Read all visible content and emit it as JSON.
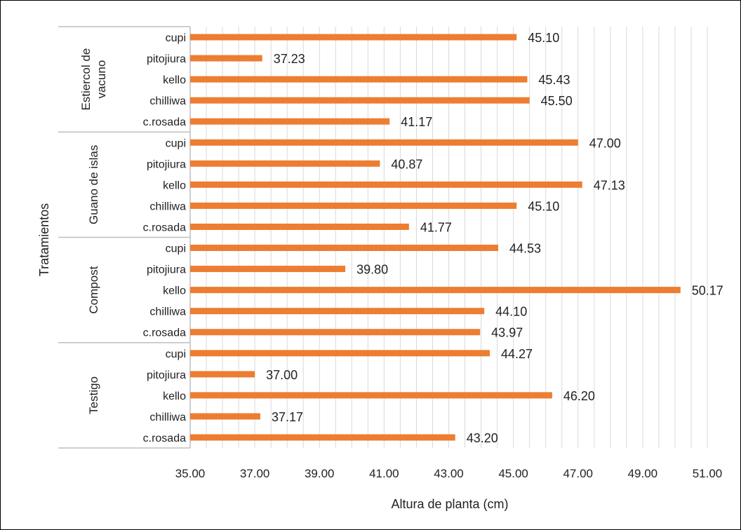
{
  "chart_data": {
    "type": "bar",
    "orientation": "horizontal",
    "xlabel": "Altura de planta (cm)",
    "ylabel": "Tratamientos",
    "xlim": [
      35,
      51
    ],
    "x_ticks": [
      "35.00",
      "37.00",
      "39.00",
      "41.00",
      "43.00",
      "45.00",
      "47.00",
      "49.00",
      "51.00"
    ],
    "grid": "vertical minor gridlines",
    "bar_color": "#ED7D31",
    "groups": [
      {
        "name": "Estiercol de vacuno",
        "name_lines": [
          "Estiercol de",
          "vacuno"
        ],
        "items": [
          {
            "category": "cupi",
            "value": 45.1,
            "label": "45.10"
          },
          {
            "category": "pitojiura",
            "value": 37.23,
            "label": "37.23"
          },
          {
            "category": "kello",
            "value": 45.43,
            "label": "45.43"
          },
          {
            "category": "chilliwa",
            "value": 45.5,
            "label": "45.50"
          },
          {
            "category": "c.rosada",
            "value": 41.17,
            "label": "41.17"
          }
        ]
      },
      {
        "name": "Guano de islas",
        "name_lines": [
          "Guano de islas"
        ],
        "items": [
          {
            "category": "cupi",
            "value": 47.0,
            "label": "47.00"
          },
          {
            "category": "pitojiura",
            "value": 40.87,
            "label": "40.87"
          },
          {
            "category": "kello",
            "value": 47.13,
            "label": "47.13"
          },
          {
            "category": "chilliwa",
            "value": 45.1,
            "label": "45.10"
          },
          {
            "category": "c.rosada",
            "value": 41.77,
            "label": "41.77"
          }
        ]
      },
      {
        "name": "Compost",
        "name_lines": [
          "Compost"
        ],
        "items": [
          {
            "category": "cupi",
            "value": 44.53,
            "label": "44.53"
          },
          {
            "category": "pitojiura",
            "value": 39.8,
            "label": "39.80"
          },
          {
            "category": "kello",
            "value": 50.17,
            "label": "50.17"
          },
          {
            "category": "chilliwa",
            "value": 44.1,
            "label": "44.10"
          },
          {
            "category": "c.rosada",
            "value": 43.97,
            "label": "43.97"
          }
        ]
      },
      {
        "name": "Testigo",
        "name_lines": [
          "Testigo"
        ],
        "items": [
          {
            "category": "cupi",
            "value": 44.27,
            "label": "44.27"
          },
          {
            "category": "pitojiura",
            "value": 37.0,
            "label": "37.00"
          },
          {
            "category": "kello",
            "value": 46.2,
            "label": "46.20"
          },
          {
            "category": "chilliwa",
            "value": 37.17,
            "label": "37.17"
          },
          {
            "category": "c.rosada",
            "value": 43.2,
            "label": "43.20"
          }
        ]
      }
    ]
  }
}
